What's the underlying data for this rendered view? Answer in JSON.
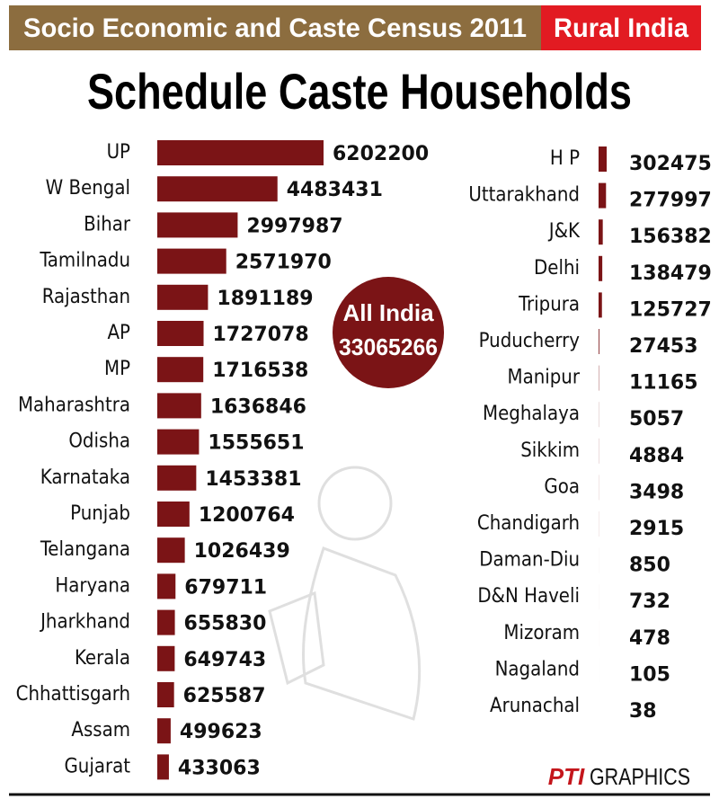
{
  "header": {
    "title": "Socio Economic and Caste Census 2011",
    "tag": "Rural India"
  },
  "chart_data": [
    {
      "type": "bar",
      "orientation": "horizontal",
      "title": "Schedule Caste Households",
      "color": "#7b1416",
      "categories": [
        "UP",
        "W Bengal",
        "Bihar",
        "Tamilnadu",
        "Rajasthan",
        "AP",
        "MP",
        "Maharashtra",
        "Odisha",
        "Karnataka",
        "Punjab",
        "Telangana",
        "Haryana",
        "Jharkhand",
        "Kerala",
        "Chhattisgarh",
        "Assam",
        "Gujarat"
      ],
      "values": [
        6202200,
        4483431,
        2997987,
        2571970,
        1891189,
        1727078,
        1716538,
        1636846,
        1555651,
        1453381,
        1200764,
        1026439,
        679711,
        655830,
        649743,
        625587,
        499623,
        433063
      ]
    },
    {
      "type": "bar",
      "orientation": "horizontal",
      "color": "#7b1416",
      "categories": [
        "H P",
        "Uttarakhand",
        "J&K",
        "Delhi",
        "Tripura",
        "Puducherry",
        "Manipur",
        "Meghalaya",
        "Sikkim",
        "Goa",
        "Chandigarh",
        "Daman-Diu",
        "D&N Haveli",
        "Mizoram",
        "Nagaland",
        "Arunachal"
      ],
      "values": [
        302475,
        277997,
        156382,
        138479,
        125727,
        27453,
        11165,
        5057,
        4884,
        3498,
        2915,
        850,
        732,
        478,
        105,
        38
      ]
    }
  ],
  "callout": {
    "label": "All India",
    "value": 33065266
  },
  "footer": {
    "brand": "PTI",
    "text": "GRAPHICS"
  }
}
